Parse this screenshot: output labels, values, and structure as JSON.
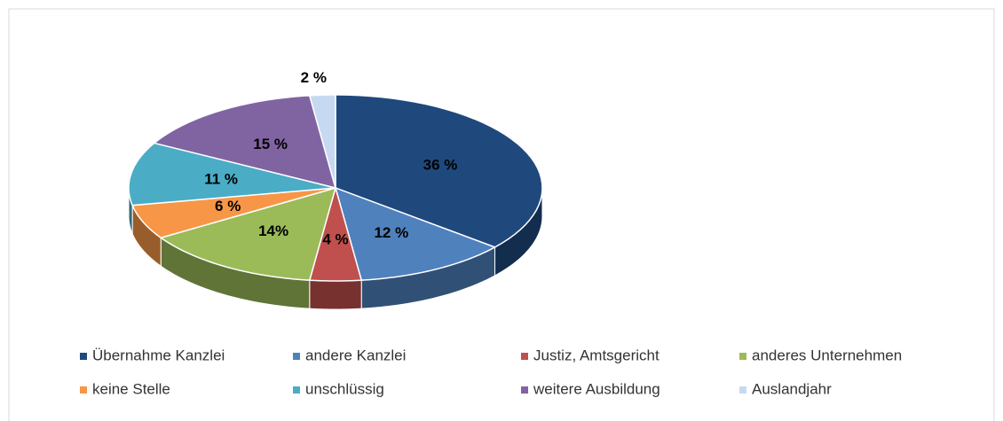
{
  "chart_data": {
    "type": "pie3d",
    "categories": [
      "Übernahme Kanzlei",
      "andere Kanzlei",
      "Justiz, Amtsgericht",
      "anderes Unternehmen",
      "keine Stelle",
      "unschlüssig",
      "weitere Ausbildung",
      "Auslandjahr"
    ],
    "values": [
      36,
      12,
      4,
      14,
      6,
      11,
      15,
      2
    ],
    "value_labels": [
      "36 %",
      "12 %",
      "4 %",
      "14%",
      "6 %",
      "11 %",
      "15 %",
      "2 %"
    ],
    "colors": [
      "#1f497d",
      "#4f81bd",
      "#c0504d",
      "#9bbb59",
      "#f79646",
      "#4bacc6",
      "#8064a2",
      "#c6d9f1"
    ],
    "legend": "bottom"
  }
}
